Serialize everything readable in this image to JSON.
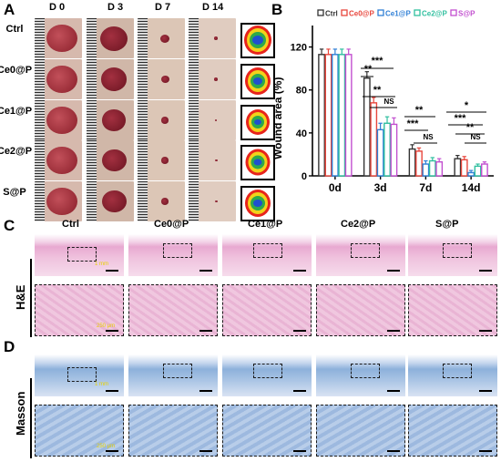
{
  "panels": {
    "A": "A",
    "B": "B",
    "C": "C",
    "D": "D"
  },
  "panelA": {
    "days": [
      "D 0",
      "D 3",
      "D 7",
      "D 14"
    ],
    "groups": [
      "Ctrl",
      "Ce0@P",
      "Ce1@P",
      "Ce2@P",
      "S@P"
    ]
  },
  "panelC": {
    "side_label": "H&E",
    "groups": [
      "Ctrl",
      "Ce0@P",
      "Ce1@P",
      "Ce2@P",
      "S@P"
    ],
    "scale_top": "1 mm",
    "scale_bottom": "250 μm"
  },
  "panelD": {
    "side_label": "Masson",
    "scale_top": "1 mm",
    "scale_bottom": "250 μm"
  },
  "colors": {
    "Ctrl": "#333333",
    "Ce0@P": "#e8463c",
    "Ce1@P": "#2f7fd6",
    "Ce2@P": "#2fbf9f",
    "S@P": "#c24fcf"
  },
  "chart_data": {
    "type": "bar",
    "ylabel": "Wound area (%)",
    "xlabel": "",
    "categories": [
      "0d",
      "3d",
      "7d",
      "14d"
    ],
    "ylim": [
      0,
      140
    ],
    "yticks": [
      "0",
      "40",
      "80",
      "120"
    ],
    "legend_position": "top",
    "series": [
      {
        "name": "Ctrl",
        "values": [
          113,
          91,
          25,
          16
        ],
        "errors": [
          5,
          6,
          4,
          3
        ]
      },
      {
        "name": "Ce0@P",
        "values": [
          113,
          68,
          23,
          15
        ],
        "errors": [
          5,
          5,
          3,
          3
        ]
      },
      {
        "name": "Ce1@P",
        "values": [
          113,
          43,
          11,
          3
        ],
        "errors": [
          5,
          6,
          3,
          2
        ]
      },
      {
        "name": "Ce2@P",
        "values": [
          113,
          49,
          14,
          9
        ],
        "errors": [
          5,
          6,
          3,
          2
        ]
      },
      {
        "name": "S@P",
        "values": [
          113,
          48,
          13,
          11
        ],
        "errors": [
          5,
          6,
          3,
          2
        ]
      }
    ],
    "annotations": [
      "**",
      "***",
      "**",
      "NS",
      "**",
      "***",
      "NS",
      "*",
      "***",
      "**",
      "NS"
    ]
  }
}
